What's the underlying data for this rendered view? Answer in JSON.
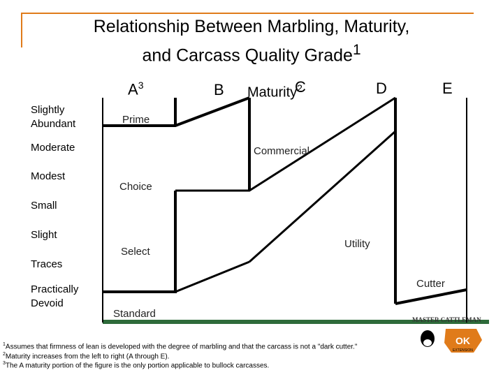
{
  "title": {
    "line1": "Relationship Between Marbling, Maturity,",
    "line2": "and Carcass Quality Grade",
    "sup": "1"
  },
  "maturity": {
    "label": "Maturity",
    "sup": "2"
  },
  "maturity_columns": [
    {
      "letter": "A",
      "sup": "3"
    },
    {
      "letter": "B",
      "sup": ""
    },
    {
      "letter": "C",
      "sup": ""
    },
    {
      "letter": "D",
      "sup": ""
    },
    {
      "letter": "E",
      "sup": ""
    }
  ],
  "marbling_levels": [
    "Slightly Abundant",
    "Moderate",
    "Modest",
    "Small",
    "Slight",
    "Traces",
    "Practically Devoid"
  ],
  "grades": {
    "prime": "Prime",
    "commercial": "Commercial",
    "choice": "Choice",
    "utility": "Utility",
    "select": "Select",
    "cutter": "Cutter",
    "standard": "Standard"
  },
  "footnotes": [
    {
      "sup": "1",
      "text": "Assumes that firmness of lean is developed with the degree of marbling and that the carcass is not a \"dark cutter.\""
    },
    {
      "sup": "2",
      "text": "Maturity increases from the left to right (A through E)."
    },
    {
      "sup": "3",
      "text": "The A maturity portion of the figure is the only portion applicable to bullock carcasses."
    }
  ],
  "logo": {
    "text": "MASTER CATTLEMAN",
    "sub": "EXTENSION"
  },
  "colors": {
    "accent_orange": "#e07b1a",
    "bar_green": "#2e6b3a",
    "line": "#000000"
  }
}
